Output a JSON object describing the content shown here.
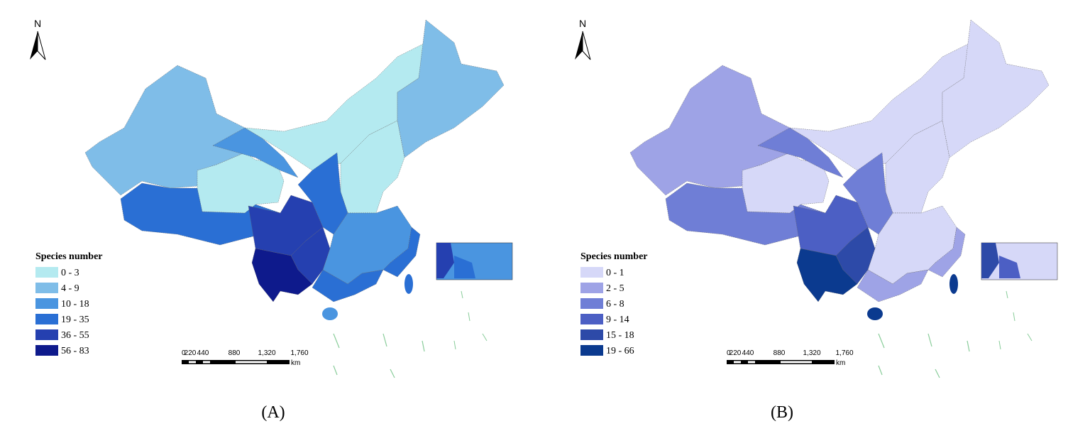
{
  "maps": [
    {
      "north": "N",
      "legend": {
        "title": "Species number",
        "classes": [
          {
            "label": "0 - 3",
            "color": "#b4eaf0"
          },
          {
            "label": "4 - 9",
            "color": "#7fbde8"
          },
          {
            "label": "10 - 18",
            "color": "#4a95e0"
          },
          {
            "label": "19 - 35",
            "color": "#2a6fd4"
          },
          {
            "label": "36 - 55",
            "color": "#2540b0"
          },
          {
            "label": "56 - 83",
            "color": "#0e1a8c"
          }
        ]
      },
      "scale_bar": {
        "labels": [
          "0",
          "220",
          "440",
          "880",
          "1,320",
          "1,760"
        ],
        "unit": "km"
      },
      "caption": "(A)"
    },
    {
      "north": "N",
      "legend": {
        "title": "Species number",
        "classes": [
          {
            "label": "0 - 1",
            "color": "#d6d8f8"
          },
          {
            "label": "2 - 5",
            "color": "#9ea3e6"
          },
          {
            "label": "6 - 8",
            "color": "#6f7ed6"
          },
          {
            "label": "9 - 14",
            "color": "#4c5fc4"
          },
          {
            "label": "15 - 18",
            "color": "#2d4aa8"
          },
          {
            "label": "19 - 66",
            "color": "#0b3a8f"
          }
        ]
      },
      "scale_bar": {
        "labels": [
          "0",
          "220",
          "440",
          "880",
          "1,320",
          "1,760"
        ],
        "unit": "km"
      },
      "caption": "(B)"
    }
  ]
}
